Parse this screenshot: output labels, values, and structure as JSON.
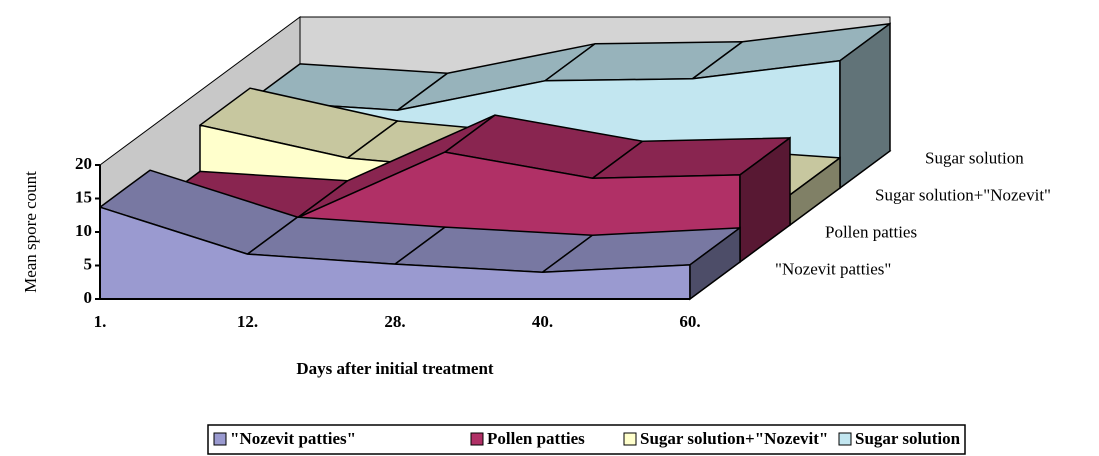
{
  "chart_data": {
    "type": "area3d",
    "categories": [
      "1.",
      "12.",
      "28.",
      "40.",
      "60."
    ],
    "series": [
      {
        "name": "\"Nozevit patties\"",
        "color": "#9a9ad0",
        "values": [
          13.7,
          6.7,
          5.2,
          4.0,
          5.1
        ]
      },
      {
        "name": "Pollen patties",
        "color": "#b03066",
        "values": [
          8,
          6.6,
          16.4,
          12.5,
          13
        ]
      },
      {
        "name": "Sugar solution+\"Nozevit\"",
        "color": "#ffffcc",
        "values": [
          14.9,
          10,
          8,
          6,
          4.5
        ]
      },
      {
        "name": "Sugar solution",
        "color": "#c2e6f0",
        "values": [
          13,
          11.6,
          16,
          16.3,
          19
        ]
      }
    ],
    "ylim": [
      0,
      20
    ],
    "yticks": [
      0,
      5,
      10,
      15,
      20
    ],
    "x_label": "Days after initial treatment",
    "y_label": "Mean spore count",
    "legend": "bottom"
  }
}
